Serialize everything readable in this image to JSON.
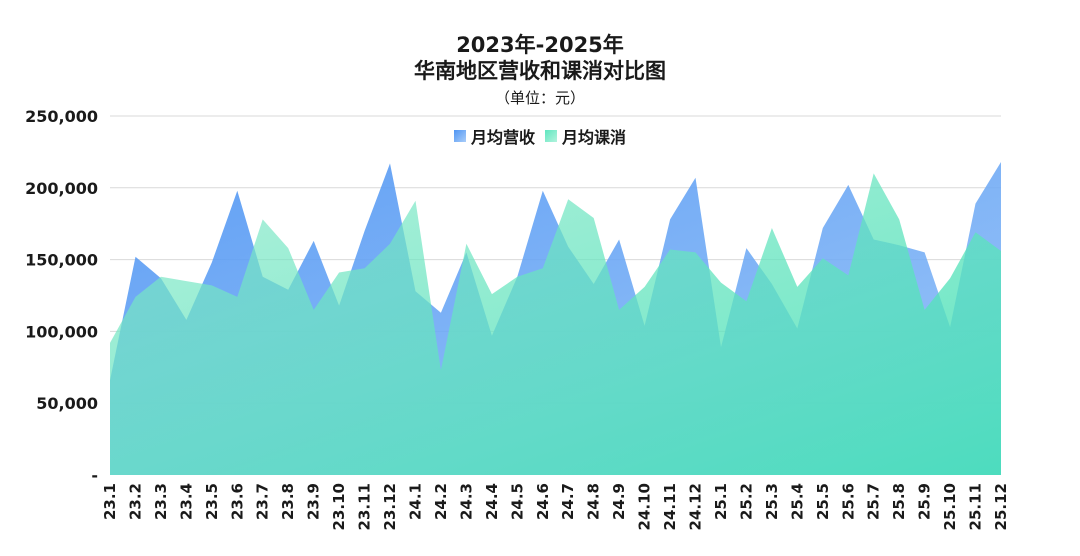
{
  "title": {
    "line1": "2023年-2025年",
    "line2": "华南地区营收和课消对比图",
    "unit": "（单位：元）"
  },
  "colors": {
    "revenue": "#5b9ef5",
    "consumption": "#7fecc4",
    "grid": "#d9d9d9"
  },
  "chart_data": {
    "type": "area",
    "title": "2023年-2025年 华南地区营收和课消对比图",
    "subtitle": "（单位：元）",
    "xlabel": "",
    "ylabel": "",
    "ylim": [
      0,
      250000
    ],
    "yticks": [
      "-",
      "50,000",
      "100,000",
      "150,000",
      "200,000",
      "250,000"
    ],
    "grid": true,
    "legend_position": "top",
    "categories": [
      "23.1",
      "23.2",
      "23.3",
      "23.4",
      "23.5",
      "23.6",
      "23.7",
      "23.8",
      "23.9",
      "23.10",
      "23.11",
      "23.12",
      "24.1",
      "24.2",
      "24.3",
      "24.4",
      "24.5",
      "24.6",
      "24.7",
      "24.8",
      "24.9",
      "24.10",
      "24.11",
      "24.12",
      "25.1",
      "25.2",
      "25.3",
      "25.4",
      "25.5",
      "25.6",
      "25.7",
      "25.8",
      "25.9",
      "25.10",
      "25.11",
      "25.12"
    ],
    "series": [
      {
        "name": "月均营收",
        "values": [
          66000,
          152000,
          137000,
          108000,
          148000,
          198000,
          138000,
          129000,
          163000,
          118000,
          170000,
          217000,
          128000,
          113000,
          155000,
          97000,
          138000,
          198000,
          159000,
          133000,
          164000,
          104000,
          178000,
          207000,
          89000,
          158000,
          133000,
          102000,
          172000,
          202000,
          164000,
          160000,
          155000,
          103000,
          189000,
          218000
        ]
      },
      {
        "name": "月均课消",
        "values": [
          92000,
          124000,
          138000,
          135000,
          132000,
          124000,
          178000,
          158000,
          115000,
          141000,
          144000,
          161000,
          191000,
          73000,
          161000,
          126000,
          138000,
          144000,
          192000,
          179000,
          115000,
          131000,
          157000,
          155000,
          134000,
          121000,
          172000,
          131000,
          151000,
          139000,
          210000,
          178000,
          115000,
          137000,
          169000,
          156000
        ]
      }
    ]
  }
}
